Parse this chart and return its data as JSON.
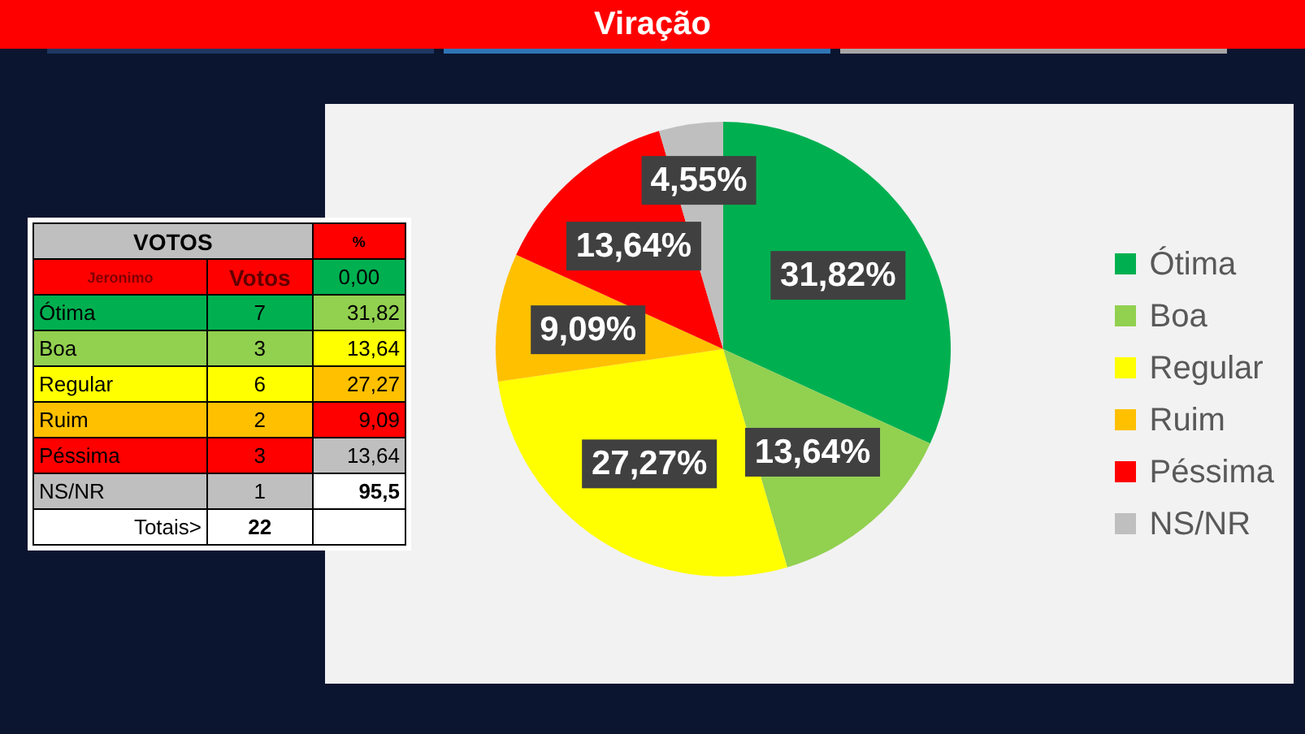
{
  "chart_data": [
    {
      "type": "pie",
      "title": "Viração",
      "categories": [
        "Ótima",
        "Boa",
        "Regular",
        "Ruim",
        "Péssima",
        "NS/NR"
      ],
      "values": [
        31.82,
        13.64,
        27.27,
        9.09,
        13.64,
        4.55
      ],
      "value_labels": [
        "31,82%",
        "13,64%",
        "27,27%",
        "9,09%",
        "13,64%",
        "4,55%"
      ],
      "colors": [
        "#00b050",
        "#92d050",
        "#ffff00",
        "#ffc000",
        "#ff0000",
        "#bfbfbf"
      ],
      "legend": "right"
    },
    {
      "type": "other",
      "title": "VOTOS",
      "categories": [
        "Ótima",
        "Boa",
        "Regular",
        "Ruim",
        "Péssima",
        "NS/NR"
      ],
      "colors": [
        "#00b050",
        "#92d050",
        "#ffff00",
        "#ffc000",
        "#ff0000",
        "#bfbfbf"
      ],
      "series": [
        {
          "name": "Votos",
          "values": [
            7,
            3,
            6,
            2,
            3,
            1
          ],
          "colors": [
            "#00b050",
            "#92d050",
            "#ffff00",
            "#ffc000",
            "#ff0000",
            "#bfbfbf"
          ]
        },
        {
          "name": "%",
          "values": [
            31.82,
            13.64,
            27.27,
            9.09,
            13.64,
            95.5
          ],
          "value_labels": [
            "31,82",
            "13,64",
            "27,27",
            "9,09",
            "13,64",
            "95,5"
          ],
          "colors": [
            "#92d050",
            "#ffff00",
            "#ffc000",
            "#ff0000",
            "#bfbfbf",
            "#ffffff"
          ]
        }
      ],
      "data_labels": true,
      "annotations": [
        "Jeronimo",
        "0,00",
        "Totais>",
        "22"
      ]
    }
  ]
}
